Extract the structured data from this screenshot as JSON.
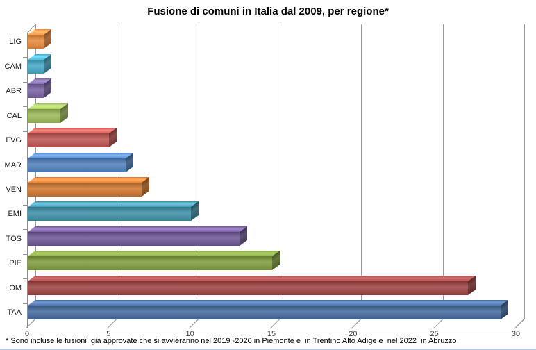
{
  "title": "Fusione di comuni in Italia dal 2009, per regione*",
  "footnote": "* Sono incluse le fusioni  già approvate che si avvieranno nel 2019 -2020 in Piemonte e  in Trentino Alto Adige e  nel 2022  in Abruzzo",
  "chart_data": {
    "type": "bar",
    "style": "3d-horizontal-bar",
    "title": "Fusione di comuni in Italia dal 2009, per regione*",
    "categories": [
      "LIG",
      "CAM",
      "ABR",
      "CAL",
      "FVG",
      "MAR",
      "VEN",
      "EMI",
      "TOS",
      "PIE",
      "LOM",
      "TAA"
    ],
    "values": [
      1,
      1,
      1,
      2,
      5,
      6,
      7,
      10,
      13,
      15,
      27,
      29
    ],
    "bar_colors": [
      "#E78A3C",
      "#45A9C8",
      "#7A63A3",
      "#9CBB59",
      "#BF5450",
      "#4F81BD",
      "#D0762D",
      "#3D90A7",
      "#6F5795",
      "#7F9C3E",
      "#9D4342",
      "#44699D"
    ],
    "x_ticks": [
      0,
      5,
      10,
      15,
      20,
      25,
      30
    ],
    "xlim": [
      0,
      30
    ],
    "xlabel": "",
    "ylabel": "",
    "grid": "vertical-gridlines-on",
    "legend": false,
    "footnote": "* Sono incluse le fusioni  già approvate che si avvieranno nel 2019 -2020 in Piemonte e  in Trentino Alto Adige e  nel 2022  in Abruzzo"
  },
  "colors": {
    "gridline": "#9b9b9b",
    "axis": "#8a8a8a",
    "title_text": "#000000",
    "bottom_rule_dark": "#4b4b4b",
    "bottom_rule_blue": "#b3c6e0"
  }
}
